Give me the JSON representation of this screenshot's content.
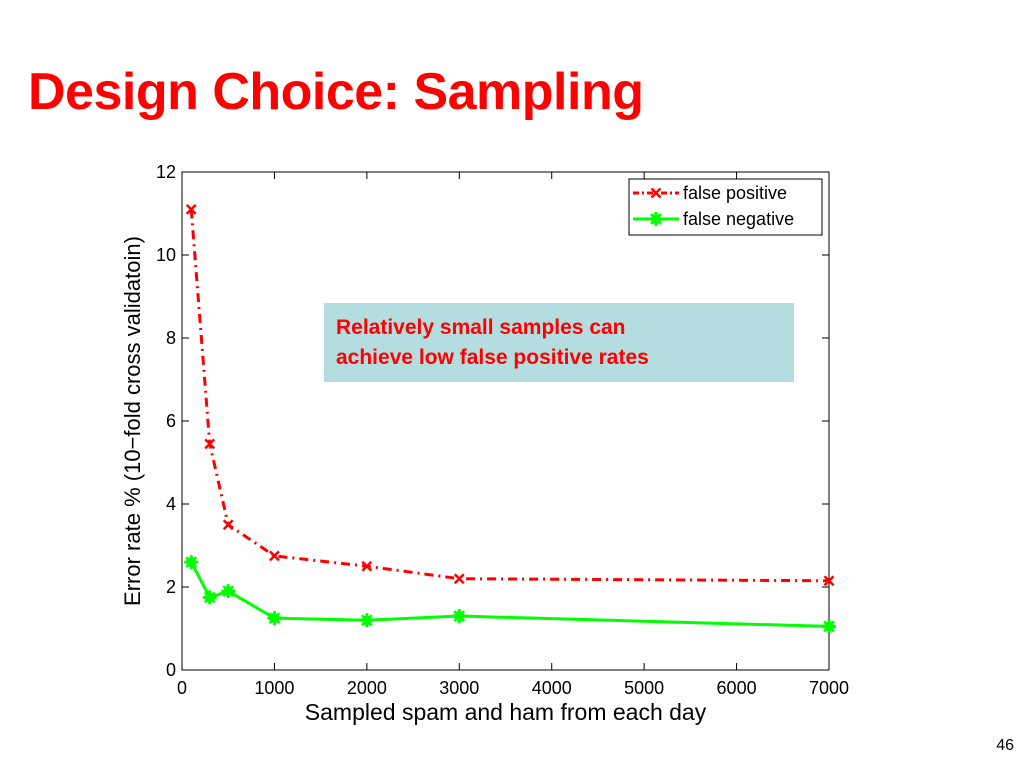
{
  "slide": {
    "title": "Design Choice: Sampling",
    "page_number": "46",
    "callout": {
      "line1": "Relatively small samples can",
      "line2": "achieve low false positive rates"
    }
  },
  "colors": {
    "title": "#ff0000",
    "false_positive": "#ff0000",
    "false_negative": "#00ff00",
    "callout_bg": "#b4dde0"
  },
  "chart_data": {
    "type": "line",
    "title": "",
    "xlabel": "Sampled spam and ham from each day",
    "ylabel": "Error rate % (10−fold cross validatoin)",
    "xlim": [
      0,
      7000
    ],
    "ylim": [
      0,
      12
    ],
    "xticks": [
      0,
      1000,
      2000,
      3000,
      4000,
      5000,
      6000,
      7000
    ],
    "yticks": [
      0,
      2,
      4,
      6,
      8,
      10,
      12
    ],
    "grid": false,
    "legend_position": "top-right",
    "series": [
      {
        "name": "false positive",
        "line_style": "dash-dot",
        "marker": "x",
        "color": "#ff0000",
        "x": [
          100,
          300,
          500,
          1000,
          2000,
          3000,
          7000
        ],
        "y": [
          11.1,
          5.45,
          3.5,
          2.75,
          2.5,
          2.2,
          2.15
        ]
      },
      {
        "name": "false negative",
        "line_style": "solid",
        "marker": "*",
        "color": "#00ff00",
        "x": [
          100,
          300,
          500,
          1000,
          2000,
          3000,
          7000
        ],
        "y": [
          2.6,
          1.75,
          1.9,
          1.25,
          1.2,
          1.3,
          1.05
        ]
      }
    ]
  }
}
